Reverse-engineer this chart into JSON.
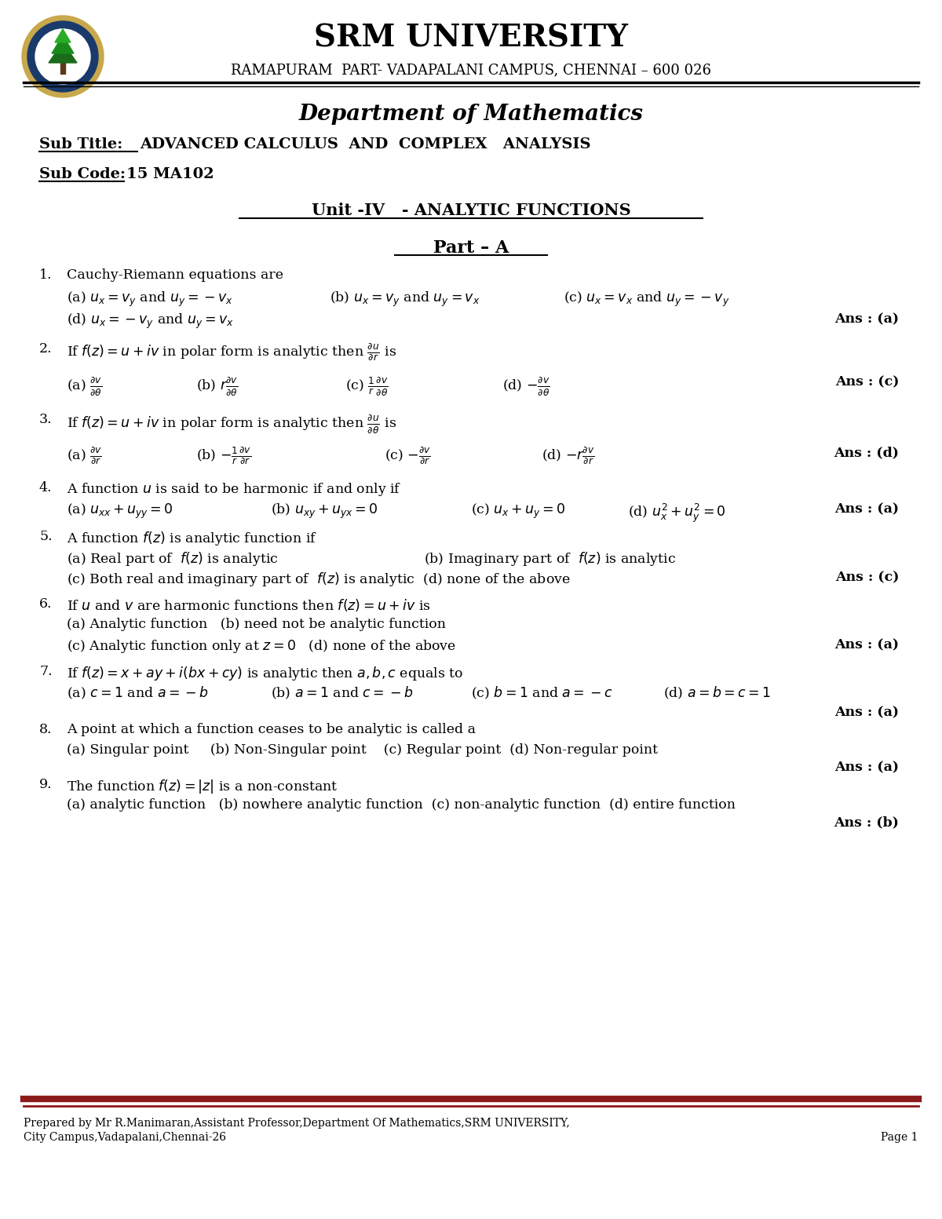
{
  "bg_color": "#ffffff",
  "university_name": "SRM UNIVERSITY",
  "campus_line": "RAMAPURAM  PART- VADAPALANI CAMPUS, CHENNAI – 600 026",
  "dept_title": "Department of Mathematics",
  "sub_title_label": "Sub Title:",
  "sub_title_text": "ADVANCED CALCULUS  AND  COMPLEX   ANALYSIS",
  "sub_code_label": "Sub Code:",
  "sub_code_text": "15 MA102",
  "unit_line": "Unit -IV   - ANALYTIC FUNCTIONS",
  "part_line": "Part – A",
  "footer_line1": "Prepared by Mr R.Manimaran,Assistant Professor,Department Of Mathematics,SRM UNIVERSITY,",
  "footer_line2": "City Campus,Vadapalani,Chennai-26",
  "page_text": "Page 1",
  "footer_bar_color": "#8B1A1A"
}
